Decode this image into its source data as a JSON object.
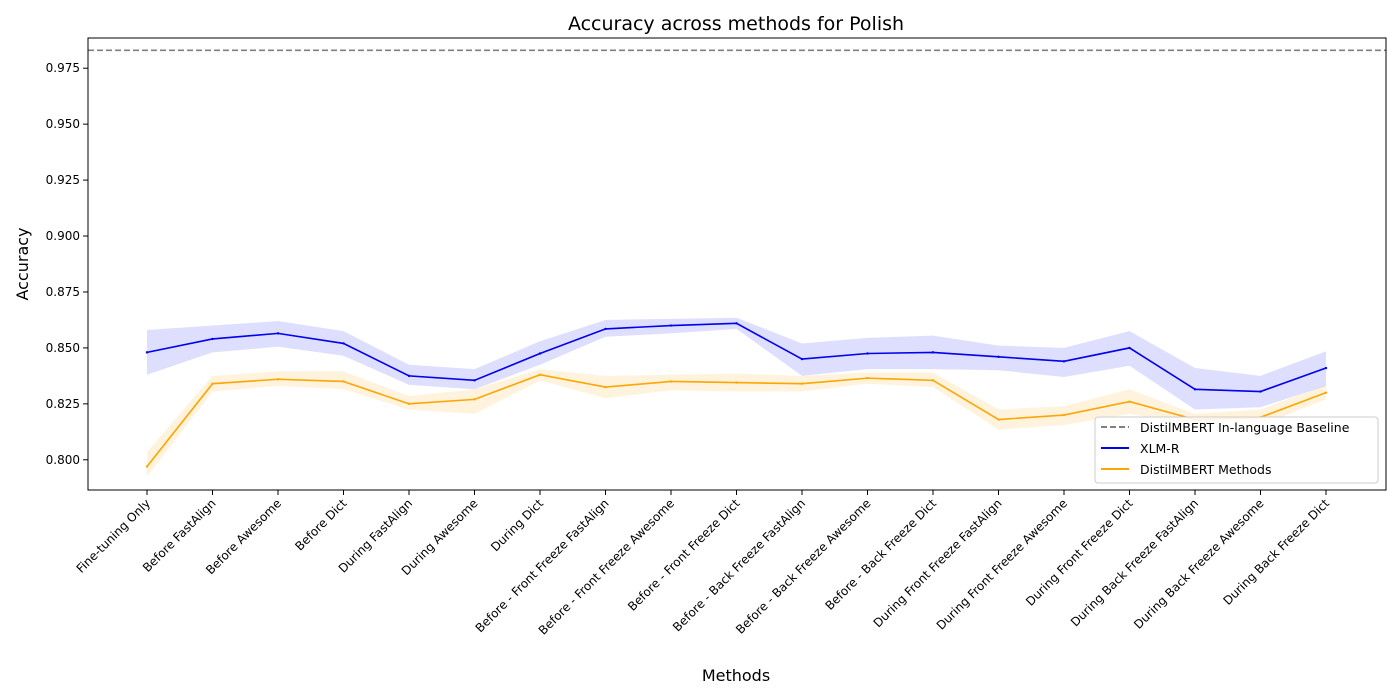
{
  "chart_data": {
    "type": "line",
    "title": "Accuracy across methods for Polish",
    "xlabel": "Methods",
    "ylabel": "Accuracy",
    "ylim": [
      0.7865,
      0.9885
    ],
    "yticks": [
      "0.800",
      "0.825",
      "0.850",
      "0.875",
      "0.900",
      "0.925",
      "0.950",
      "0.975"
    ],
    "grid": false,
    "legend_position": "lower-right",
    "categories": [
      "Fine-tuning Only",
      "Before FastAlign",
      "Before Awesome",
      "Before Dict",
      "During FastAlign",
      "During Awesome",
      "During Dict",
      "Before - Front Freeze FastAlign",
      "Before - Front Freeze Awesome",
      "Before - Front Freeze Dict",
      "Before - Back Freeze FastAlign",
      "Before - Back Freeze Awesome",
      "Before - Back Freeze Dict",
      "During Front Freeze FastAlign",
      "During Front Freeze Awesome",
      "During Front Freeze Dict",
      "During Back Freeze FastAlign",
      "During Back Freeze Awesome",
      "During Back Freeze Dict"
    ],
    "baseline": {
      "name": "DistilMBERT In-language Baseline",
      "value": 0.983,
      "color": "#808080",
      "style": "dashed"
    },
    "series": [
      {
        "name": "XLM-R",
        "color": "#0000ee",
        "band_color": "#0000ff",
        "values": [
          0.848,
          0.854,
          0.8565,
          0.852,
          0.8375,
          0.8355,
          0.8475,
          0.8585,
          0.86,
          0.861,
          0.845,
          0.8475,
          0.848,
          0.846,
          0.844,
          0.85,
          0.8315,
          0.8305,
          0.841
        ],
        "lower": [
          0.838,
          0.848,
          0.8505,
          0.8465,
          0.8335,
          0.8315,
          0.8425,
          0.855,
          0.8565,
          0.8585,
          0.8375,
          0.8405,
          0.8405,
          0.84,
          0.837,
          0.842,
          0.8225,
          0.8235,
          0.833
        ],
        "upper": [
          0.858,
          0.86,
          0.862,
          0.8575,
          0.8425,
          0.8405,
          0.853,
          0.8625,
          0.863,
          0.8635,
          0.852,
          0.8545,
          0.8555,
          0.851,
          0.85,
          0.8575,
          0.841,
          0.8375,
          0.8485
        ]
      },
      {
        "name": "DistilMBERT Methods",
        "color": "#ffa500",
        "band_color": "#ffa500",
        "values": [
          0.797,
          0.834,
          0.836,
          0.835,
          0.825,
          0.827,
          0.838,
          0.8325,
          0.835,
          0.8345,
          0.834,
          0.8365,
          0.8355,
          0.818,
          0.82,
          0.826,
          0.818,
          0.819,
          0.83
        ],
        "lower": [
          0.7925,
          0.8305,
          0.833,
          0.8315,
          0.8225,
          0.8205,
          0.8355,
          0.8275,
          0.831,
          0.8305,
          0.8305,
          0.834,
          0.8325,
          0.8135,
          0.8155,
          0.8205,
          0.8155,
          0.8155,
          0.827
        ],
        "upper": [
          0.8035,
          0.8375,
          0.8395,
          0.8395,
          0.8285,
          0.8315,
          0.8405,
          0.8375,
          0.838,
          0.8385,
          0.8375,
          0.839,
          0.839,
          0.8225,
          0.824,
          0.8315,
          0.8205,
          0.8225,
          0.8335
        ]
      }
    ]
  }
}
